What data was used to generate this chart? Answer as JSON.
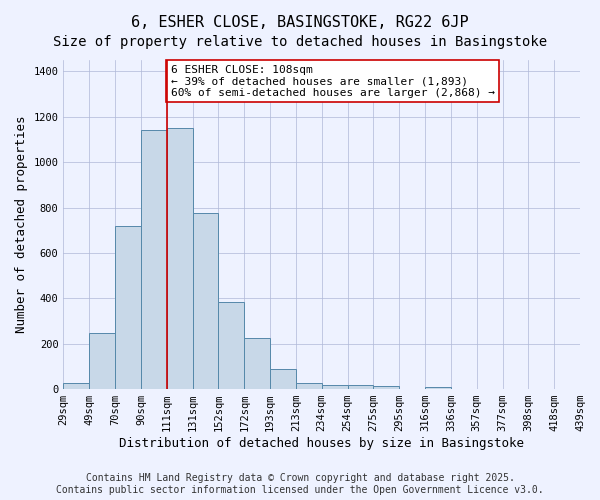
{
  "title_line1": "6, ESHER CLOSE, BASINGSTOKE, RG22 6JP",
  "title_line2": "Size of property relative to detached houses in Basingstoke",
  "xlabel": "Distribution of detached houses by size in Basingstoke",
  "ylabel": "Number of detached properties",
  "bar_values": [
    25,
    245,
    720,
    1140,
    1150,
    775,
    385,
    225,
    90,
    25,
    20,
    20,
    15,
    0,
    10,
    0,
    0,
    0,
    0,
    0
  ],
  "bin_labels": [
    "29sqm",
    "49sqm",
    "70sqm",
    "90sqm",
    "111sqm",
    "131sqm",
    "152sqm",
    "172sqm",
    "193sqm",
    "213sqm",
    "234sqm",
    "254sqm",
    "275sqm",
    "295sqm",
    "316sqm",
    "336sqm",
    "357sqm",
    "377sqm",
    "398sqm",
    "418sqm",
    "439sqm"
  ],
  "bar_color": "#c8d8e8",
  "bar_edge_color": "#5588aa",
  "grid_color": "#b0b8d8",
  "bg_color": "#eef2ff",
  "red_line_x": 4.0,
  "annotation_text": "6 ESHER CLOSE: 108sqm\n← 39% of detached houses are smaller (1,893)\n60% of semi-detached houses are larger (2,868) →",
  "annotation_box_color": "#ffffff",
  "annotation_box_edge": "#cc0000",
  "ylim": [
    0,
    1450
  ],
  "yticks": [
    0,
    200,
    400,
    600,
    800,
    1000,
    1200,
    1400
  ],
  "footer_line1": "Contains HM Land Registry data © Crown copyright and database right 2025.",
  "footer_line2": "Contains public sector information licensed under the Open Government Licence v3.0.",
  "title_fontsize": 11,
  "subtitle_fontsize": 10,
  "axis_label_fontsize": 9,
  "tick_fontsize": 7.5,
  "annotation_fontsize": 8,
  "footer_fontsize": 7
}
